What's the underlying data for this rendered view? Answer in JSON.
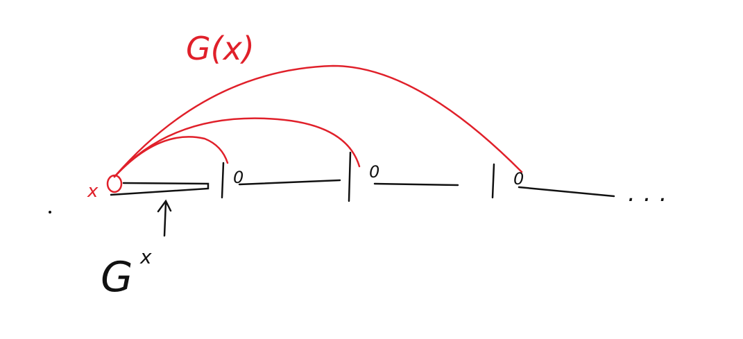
{
  "labels": {
    "top": "G(x)",
    "start": "x",
    "zeros": [
      "0",
      "0",
      "0"
    ],
    "bottom_base": "G",
    "bottom_sup": "x",
    "ellipsis": "..."
  }
}
